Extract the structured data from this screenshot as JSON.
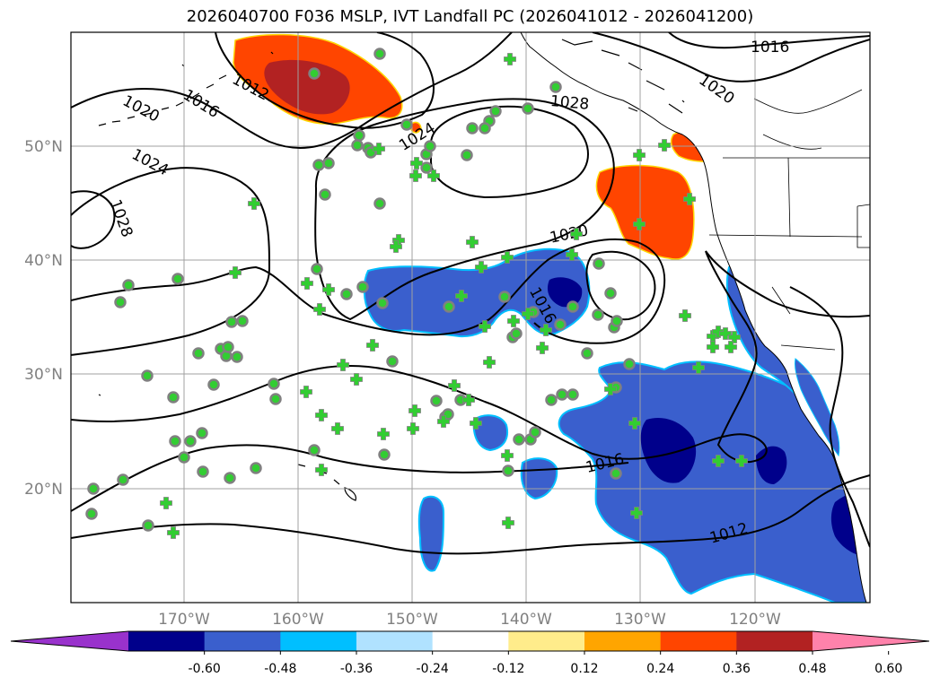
{
  "title": "2026040700 F036 MSLP, IVT Landfall PC (2026041012 - 2026041200)",
  "lat_ticks": [
    "50°N",
    "40°N",
    "30°N",
    "20°N"
  ],
  "lon_ticks": [
    "170°W",
    "160°W",
    "150°W",
    "140°W",
    "130°W",
    "120°W"
  ],
  "contour_labels": [
    "1016",
    "1020",
    "1028",
    "1024",
    "1012",
    "1016",
    "1020",
    "1024",
    "1028",
    "1020",
    "1016",
    "1016",
    "1012"
  ],
  "colorbar": {
    "ticks": [
      "-0.60",
      "-0.48",
      "-0.36",
      "-0.24",
      "-0.12",
      "0.12",
      "0.24",
      "0.36",
      "0.48",
      "0.60"
    ],
    "colors": [
      "#9932cc",
      "#00008b",
      "#3a5fcd",
      "#00bfff",
      "#b0e2ff",
      "#ffffff",
      "#ffec8b",
      "#ffa500",
      "#ff4500",
      "#b22222",
      "#ff82ab"
    ]
  },
  "colors": {
    "contour": "#000000",
    "grid": "#a0a0a0",
    "marker_fill": "#32cd32",
    "marker_edge": "#808080",
    "coast": "#000000"
  },
  "map_extent": {
    "lon": [
      -180,
      -110
    ],
    "lat": [
      10,
      60
    ]
  }
}
